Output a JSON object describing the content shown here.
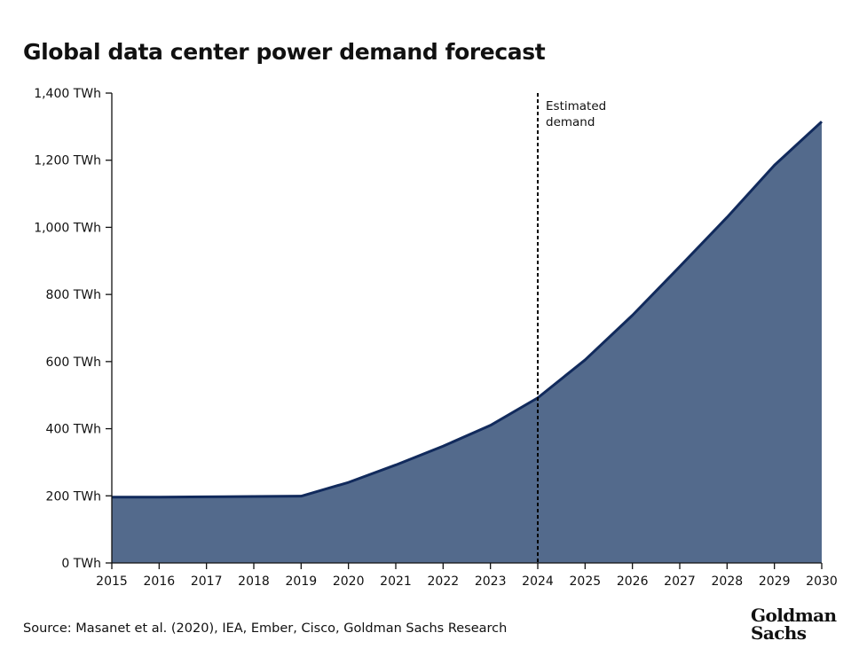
{
  "chart_data": {
    "type": "area",
    "title": "Global data center power demand forecast",
    "x": [
      "2015",
      "2016",
      "2017",
      "2018",
      "2019",
      "2020",
      "2021",
      "2022",
      "2023",
      "2024",
      "2025",
      "2026",
      "2027",
      "2028",
      "2029",
      "2030"
    ],
    "series": [
      {
        "values": [
          196,
          196,
          197,
          198,
          199,
          240,
          292,
          348,
          410,
          492,
          605,
          738,
          883,
          1030,
          1185,
          1315
        ]
      }
    ],
    "ylim": [
      0,
      1400
    ],
    "yticks": [
      0,
      200,
      400,
      600,
      800,
      1000,
      1200,
      1400
    ],
    "ytick_labels": [
      "0 TWh",
      "200 TWh",
      "400 TWh",
      "600 TWh",
      "800 TWh",
      "1,000 TWh",
      "1,200 TWh",
      "1,400 TWh"
    ],
    "grid": false,
    "annotation": {
      "x": "2024",
      "lines": [
        "Estimated",
        "demand"
      ]
    },
    "colors": {
      "fill": "#536a8c",
      "line": "#112a5c",
      "axis": "#111111"
    }
  },
  "source": "Source: Masanet et al. (2020), IEA, Ember, Cisco, Goldman Sachs Research",
  "logo": {
    "line1": "Goldman",
    "line2": "Sachs"
  }
}
